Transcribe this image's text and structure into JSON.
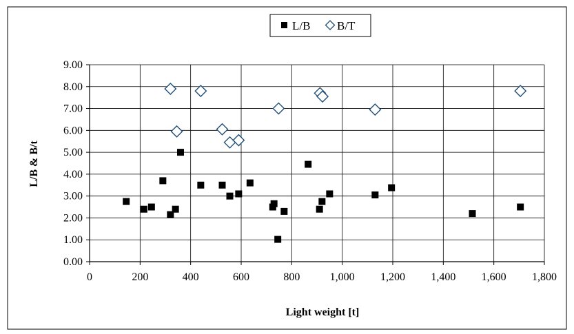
{
  "chart_data": {
    "type": "scatter",
    "xlabel": "Light weight [t]",
    "ylabel": "L/B & B/t",
    "xlim": [
      0,
      1800
    ],
    "ylim": [
      0,
      9
    ],
    "xticks": [
      0,
      200,
      400,
      600,
      800,
      1000,
      1200,
      1400,
      1600,
      1800
    ],
    "xtick_labels": [
      "0",
      "200",
      "400",
      "600",
      "800",
      "1,000",
      "1,200",
      "1,400",
      "1,600",
      "1,800"
    ],
    "yticks": [
      0,
      1,
      2,
      3,
      4,
      5,
      6,
      7,
      8,
      9
    ],
    "ytick_labels": [
      "0.00",
      "1.00",
      "2.00",
      "3.00",
      "4.00",
      "5.00",
      "6.00",
      "7.00",
      "8.00",
      "9.00"
    ],
    "grid": true,
    "legend_position": "top-center",
    "series": [
      {
        "name": "L/B",
        "marker": "filled-square",
        "color": "#000000",
        "points": [
          [
            145,
            2.75
          ],
          [
            215,
            2.4
          ],
          [
            245,
            2.5
          ],
          [
            290,
            3.7
          ],
          [
            320,
            2.15
          ],
          [
            340,
            2.4
          ],
          [
            360,
            5.0
          ],
          [
            440,
            3.5
          ],
          [
            525,
            3.5
          ],
          [
            555,
            3.0
          ],
          [
            590,
            3.1
          ],
          [
            635,
            3.6
          ],
          [
            725,
            2.5
          ],
          [
            730,
            2.65
          ],
          [
            745,
            1.02
          ],
          [
            770,
            2.3
          ],
          [
            865,
            4.45
          ],
          [
            910,
            2.4
          ],
          [
            920,
            2.75
          ],
          [
            950,
            3.1
          ],
          [
            1130,
            3.05
          ],
          [
            1195,
            3.38
          ],
          [
            1515,
            2.2
          ],
          [
            1705,
            2.5
          ]
        ]
      },
      {
        "name": "B/T",
        "marker": "open-diamond",
        "color": "#1f4e79",
        "points": [
          [
            320,
            7.9
          ],
          [
            345,
            5.95
          ],
          [
            440,
            7.8
          ],
          [
            525,
            6.05
          ],
          [
            555,
            5.45
          ],
          [
            590,
            5.55
          ],
          [
            748,
            7.0
          ],
          [
            912,
            7.7
          ],
          [
            922,
            7.55
          ],
          [
            1130,
            6.95
          ],
          [
            1705,
            7.8
          ]
        ]
      }
    ]
  }
}
